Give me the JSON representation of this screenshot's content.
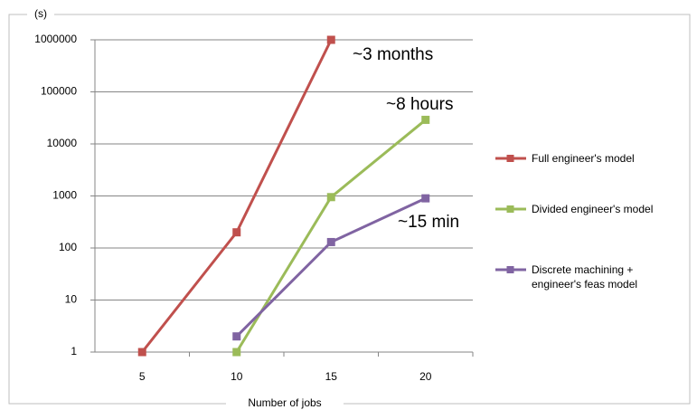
{
  "chart_data": {
    "type": "line",
    "y_label": "(s)",
    "x_label": "Number of jobs",
    "categories": [
      "5",
      "10",
      "15",
      "20"
    ],
    "series": [
      {
        "name": "Full engineer's model",
        "color": "#c0504d",
        "values": [
          1,
          200,
          1000000,
          null
        ]
      },
      {
        "name": "Divided engineer's model",
        "color": "#9bbb59",
        "values": [
          null,
          1,
          950,
          29000
        ]
      },
      {
        "name": "Discrete machining + engineer's feas model",
        "color": "#8064a2",
        "values": [
          null,
          2,
          130,
          900
        ]
      }
    ],
    "annotations": [
      "~3 months",
      "~8 hours",
      "~15 min"
    ],
    "ylim": [
      1,
      1000000
    ],
    "yticks": [
      1,
      10,
      100,
      1000,
      10000,
      100000,
      1000000
    ],
    "yscale": "log",
    "grid": true,
    "legend": "right"
  }
}
